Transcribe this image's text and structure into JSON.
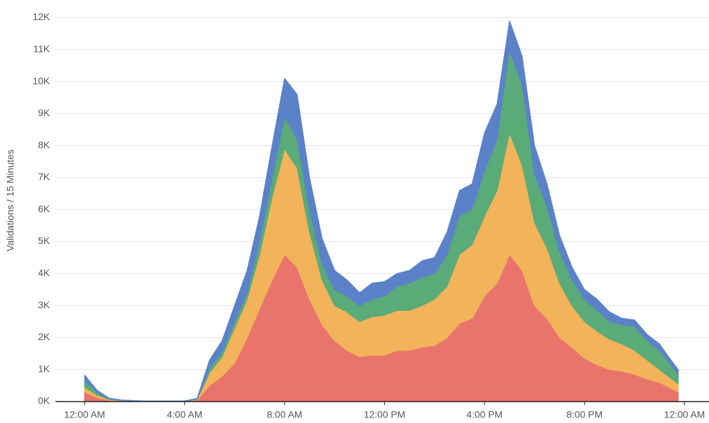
{
  "chart_data": {
    "type": "stacked-area",
    "y_label": "Validations / 15 Minutes",
    "x": [
      0,
      0.5,
      1,
      1.5,
      2,
      2.5,
      3,
      3.5,
      4,
      4.5,
      5,
      5.5,
      6,
      6.5,
      7,
      7.5,
      8,
      8.5,
      9,
      9.5,
      10,
      10.5,
      11,
      11.5,
      12,
      12.5,
      13,
      13.5,
      14,
      14.5,
      15,
      15.5,
      16,
      16.5,
      17,
      17.5,
      18,
      18.5,
      19,
      19.5,
      20,
      20.5,
      21,
      21.5,
      22,
      22.5,
      23,
      23.5,
      23.75
    ],
    "series": [
      {
        "color": "#e8746c",
        "values": [
          300,
          120,
          40,
          20,
          10,
          10,
          10,
          10,
          10,
          50,
          500,
          800,
          1200,
          2000,
          2900,
          3800,
          4600,
          4200,
          3200,
          2400,
          1900,
          1600,
          1400,
          1450,
          1450,
          1600,
          1600,
          1700,
          1750,
          2000,
          2450,
          2600,
          3300,
          3700,
          4600,
          4100,
          3000,
          2600,
          2000,
          1700,
          1350,
          1150,
          1000,
          950,
          850,
          700,
          600,
          400,
          300
        ]
      },
      {
        "color": "#f2b35a",
        "values": [
          150,
          80,
          20,
          10,
          10,
          0,
          0,
          0,
          0,
          20,
          400,
          600,
          1100,
          1200,
          1700,
          2600,
          3300,
          3100,
          2100,
          1400,
          1100,
          1200,
          1100,
          1200,
          1250,
          1250,
          1250,
          1300,
          1450,
          1600,
          2150,
          2300,
          2500,
          2900,
          3800,
          3300,
          2600,
          2200,
          1700,
          1300,
          1150,
          1050,
          950,
          850,
          750,
          600,
          400,
          300,
          250
        ]
      },
      {
        "color": "#5aab78",
        "values": [
          200,
          80,
          20,
          10,
          0,
          0,
          0,
          0,
          0,
          10,
          150,
          150,
          200,
          200,
          400,
          600,
          1000,
          900,
          700,
          500,
          500,
          500,
          500,
          550,
          600,
          750,
          850,
          900,
          800,
          1000,
          1200,
          1100,
          1400,
          1600,
          2600,
          2500,
          1500,
          1300,
          1000,
          800,
          700,
          650,
          550,
          600,
          750,
          600,
          600,
          400,
          300
        ]
      },
      {
        "color": "#5b82c9",
        "values": [
          180,
          70,
          20,
          10,
          10,
          10,
          10,
          10,
          10,
          20,
          250,
          350,
          500,
          700,
          800,
          1000,
          1200,
          1400,
          1000,
          800,
          600,
          500,
          400,
          500,
          450,
          400,
          400,
          500,
          500,
          700,
          800,
          800,
          1200,
          1100,
          900,
          900,
          900,
          700,
          500,
          400,
          300,
          350,
          300,
          200,
          200,
          200,
          200,
          150,
          150
        ]
      }
    ],
    "xlim": [
      -1.17,
      24.98
    ],
    "xticks": [
      {
        "value": 0,
        "label": "12:00 AM"
      },
      {
        "value": 4,
        "label": "4:00 AM"
      },
      {
        "value": 8,
        "label": "8:00 AM"
      },
      {
        "value": 12,
        "label": "12:00 PM"
      },
      {
        "value": 16,
        "label": "4:00 PM"
      },
      {
        "value": 20,
        "label": "8:00 PM"
      },
      {
        "value": 24,
        "label": "12:00 AM"
      }
    ],
    "ylim": [
      0,
      12550
    ],
    "yticks": [
      {
        "value": 0,
        "label": "0K"
      },
      {
        "value": 1000,
        "label": "1K"
      },
      {
        "value": 2000,
        "label": "2K"
      },
      {
        "value": 3000,
        "label": "3K"
      },
      {
        "value": 4000,
        "label": "4K"
      },
      {
        "value": 5000,
        "label": "5K"
      },
      {
        "value": 6000,
        "label": "6K"
      },
      {
        "value": 7000,
        "label": "7K"
      },
      {
        "value": 8000,
        "label": "8K"
      },
      {
        "value": 9000,
        "label": "9K"
      },
      {
        "value": 10000,
        "label": "10K"
      },
      {
        "value": 11000,
        "label": "11K"
      },
      {
        "value": 12000,
        "label": "12K"
      }
    ],
    "grid": true
  }
}
